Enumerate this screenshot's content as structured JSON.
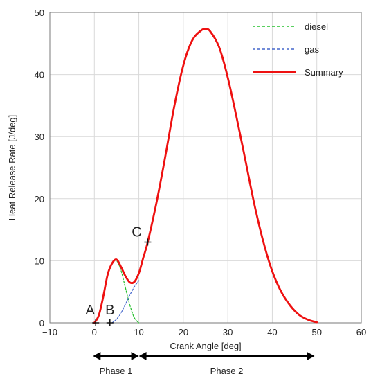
{
  "chart_data": {
    "type": "line",
    "xlabel": "Crank Angle [deg]",
    "ylabel": "Heat Release Rate [J/deg]",
    "xlim": [
      -10,
      60
    ],
    "ylim": [
      0,
      50
    ],
    "x_ticks": [
      -10,
      0,
      10,
      20,
      30,
      40,
      50,
      60
    ],
    "y_ticks": [
      0,
      10,
      20,
      30,
      40,
      50
    ],
    "x_tick_labels": [
      "−10",
      "0",
      "10",
      "20",
      "30",
      "40",
      "50",
      "60"
    ],
    "y_tick_labels": [
      "0",
      "10",
      "20",
      "30",
      "40",
      "50"
    ],
    "grid": true,
    "legend_position": "top-right",
    "series": [
      {
        "name": "diesel",
        "color": "#22c02a",
        "style": "dashed",
        "x": [
          0,
          1,
          2,
          3,
          4,
          5,
          6,
          7,
          8,
          9,
          10
        ],
        "y": [
          0,
          1.2,
          4.2,
          7.8,
          9.6,
          10.0,
          8.4,
          5.6,
          2.8,
          0.8,
          0
        ]
      },
      {
        "name": "gas",
        "color": "#4466cc",
        "style": "dashed",
        "x": [
          4,
          5,
          6,
          7,
          8,
          9,
          10
        ],
        "y": [
          0,
          0.6,
          1.6,
          3.0,
          4.5,
          5.8,
          6.8
        ]
      },
      {
        "name": "Summary",
        "color": "#ee1111",
        "style": "solid",
        "x": [
          0,
          1,
          2,
          3,
          4,
          5,
          6,
          7,
          8,
          9,
          10,
          11,
          12,
          14,
          16,
          18,
          20,
          22,
          24,
          25,
          26,
          28,
          30,
          32,
          34,
          36,
          38,
          40,
          42,
          44,
          46,
          48,
          50
        ],
        "y": [
          0,
          1.2,
          4.2,
          7.8,
          9.6,
          10.2,
          9.0,
          7.5,
          6.5,
          6.6,
          8.0,
          10.5,
          13.0,
          19.5,
          27.0,
          35.0,
          41.5,
          45.5,
          47.1,
          47.3,
          47.0,
          44.5,
          39.5,
          33.0,
          26.0,
          19.0,
          13.0,
          8.3,
          5.0,
          2.8,
          1.3,
          0.5,
          0.1
        ]
      }
    ],
    "annotations": [
      {
        "label": "A",
        "x": 0.3,
        "y": 0
      },
      {
        "label": "B",
        "x": 3.5,
        "y": 0
      },
      {
        "label": "C",
        "x": 12,
        "y": 13
      }
    ],
    "phases": [
      {
        "label": "Phase 1",
        "from": -0.3,
        "to": 10
      },
      {
        "label": "Phase 2",
        "from": 10,
        "to": 49.5
      }
    ]
  }
}
